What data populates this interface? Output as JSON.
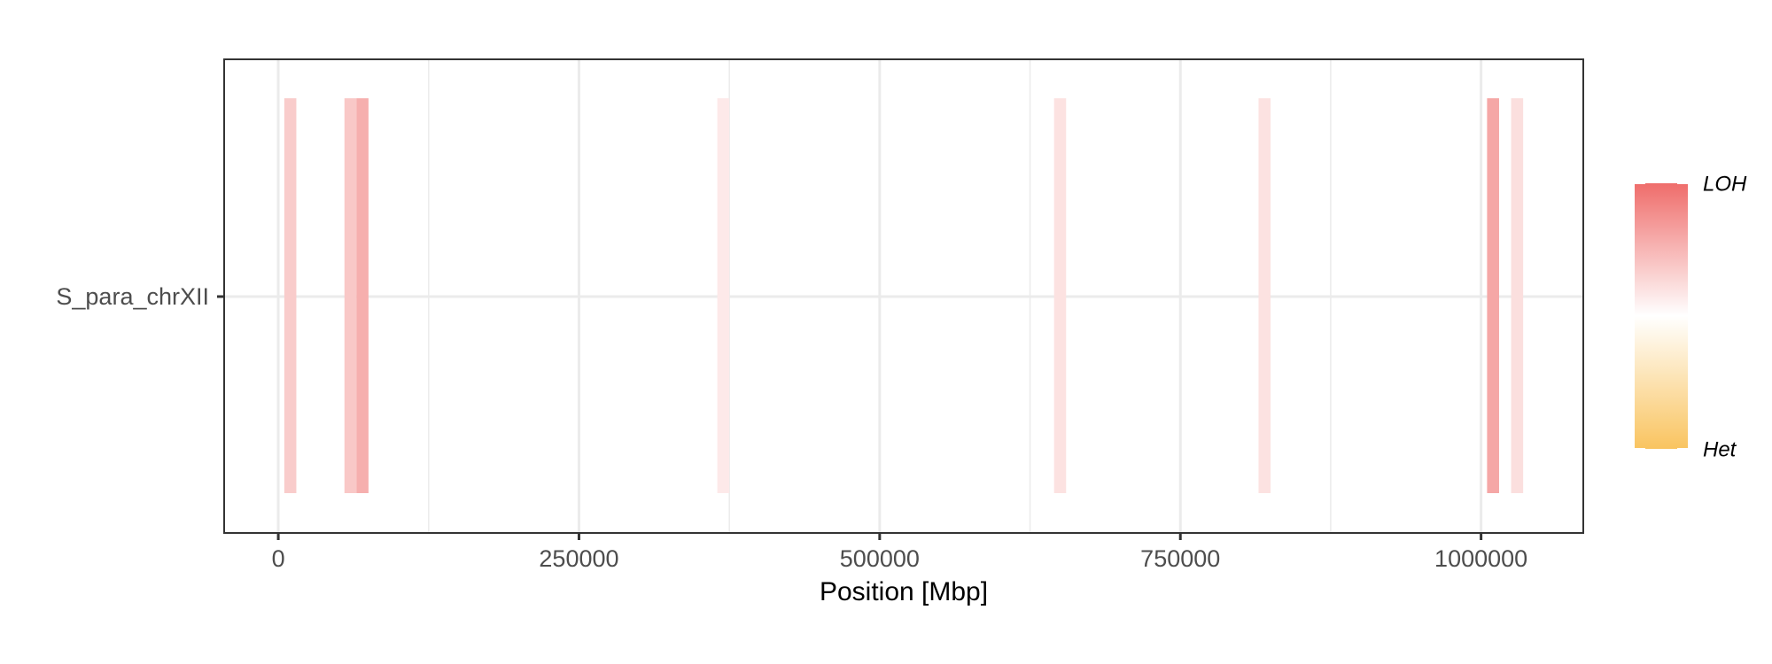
{
  "chart_data": {
    "type": "heatmap",
    "xlabel": "Position [Mbp]",
    "ylabel": "",
    "xlim": [
      -45000,
      1085000
    ],
    "x_ticks": [
      0,
      250000,
      500000,
      750000,
      1000000
    ],
    "x_tick_labels": [
      "0",
      "250000",
      "500000",
      "750000",
      "1000000"
    ],
    "categories": [
      "S_para_chrXII"
    ],
    "grid": "on",
    "legend_placement": "right",
    "color_scale": {
      "low_label": "Het",
      "high_label": "LOH",
      "low_color": "#f9c460",
      "mid_color": "#ffffff",
      "high_color": "#ef6d6b"
    },
    "series": [
      {
        "chromosome": "S_para_chrXII",
        "segments": [
          {
            "start": 5000,
            "end": 15000,
            "value": 0.35
          },
          {
            "start": 55000,
            "end": 65000,
            "value": 0.38
          },
          {
            "start": 65000,
            "end": 75000,
            "value": 0.55
          },
          {
            "start": 365000,
            "end": 375000,
            "value": 0.15
          },
          {
            "start": 645000,
            "end": 655000,
            "value": 0.2
          },
          {
            "start": 815000,
            "end": 825000,
            "value": 0.2
          },
          {
            "start": 1005000,
            "end": 1015000,
            "value": 0.6
          },
          {
            "start": 1025000,
            "end": 1035000,
            "value": 0.22
          }
        ]
      }
    ]
  }
}
